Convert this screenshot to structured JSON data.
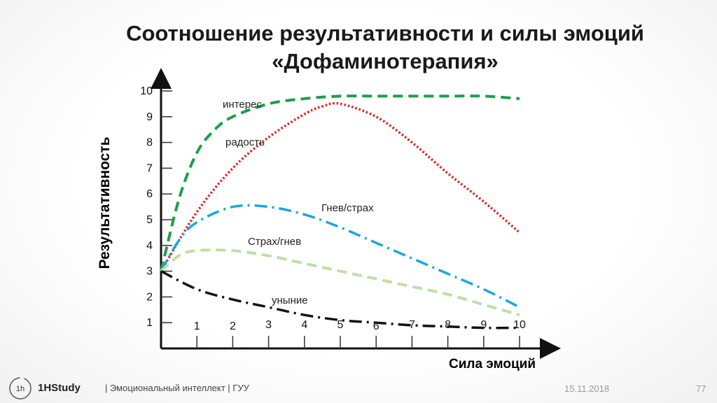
{
  "title": {
    "line1": "Соотношение результативности и силы эмоций",
    "line2": "«Дофаминотерапия»"
  },
  "chart_data": {
    "type": "line",
    "xlabel": "Сила эмоций",
    "ylabel": "Результативность",
    "xlim": [
      0,
      10
    ],
    "ylim": [
      0,
      10
    ],
    "x_ticks": [
      "1",
      "2",
      "3",
      "4",
      "5",
      "6",
      "7",
      "8",
      "9",
      "10"
    ],
    "y_ticks": [
      "1",
      "2",
      "3",
      "4",
      "5",
      "6",
      "7",
      "8",
      "9",
      "10"
    ],
    "grid": false,
    "legend": "none",
    "series": [
      {
        "name": "интерес",
        "color": "#1e9e4a",
        "dash": "dashed",
        "x": [
          0,
          0.5,
          1,
          1.5,
          2,
          3,
          4,
          5,
          6,
          7,
          8,
          9,
          10
        ],
        "y": [
          3,
          5.8,
          7.6,
          8.5,
          9,
          9.5,
          9.7,
          9.8,
          9.8,
          9.8,
          9.8,
          9.8,
          9.7
        ]
      },
      {
        "name": "радость",
        "color": "#e02020",
        "dash": "dotted",
        "x": [
          0,
          1,
          2,
          3,
          4,
          4.5,
          5,
          6,
          7,
          8,
          9,
          10
        ],
        "y": [
          3,
          5.3,
          7,
          8.2,
          9.1,
          9.4,
          9.5,
          9,
          8,
          6.8,
          5.7,
          4.5
        ]
      },
      {
        "name": "Гнев/страх",
        "color": "#1aa7e0",
        "dash": "dashdot",
        "x": [
          0,
          0.5,
          1,
          2,
          3,
          4,
          5,
          6,
          7,
          8,
          9,
          10
        ],
        "y": [
          3,
          4.2,
          4.9,
          5.5,
          5.5,
          5.2,
          4.7,
          4.1,
          3.5,
          2.9,
          2.3,
          1.6
        ]
      },
      {
        "name": "Страх/гнев",
        "color": "#bde0a4",
        "dash": "dashed",
        "x": [
          0,
          0.5,
          1,
          2,
          3,
          4,
          5,
          6,
          7,
          8,
          9,
          10
        ],
        "y": [
          3,
          3.6,
          3.8,
          3.8,
          3.6,
          3.3,
          3,
          2.7,
          2.4,
          2.1,
          1.7,
          1.3
        ]
      },
      {
        "name": "уныние",
        "color": "#111111",
        "dash": "dashdot",
        "x": [
          0,
          1,
          2,
          3,
          4,
          5,
          6,
          7,
          8,
          9,
          10
        ],
        "y": [
          3,
          2.3,
          1.9,
          1.6,
          1.3,
          1.1,
          1.0,
          0.9,
          0.85,
          0.8,
          0.8
        ]
      }
    ]
  },
  "footer": {
    "logo_text": "1h",
    "brand": "1HStudy",
    "course": "|  Эмоциональный интеллект  |  ГУУ",
    "date": "15.11.2018",
    "page_number": "77"
  }
}
